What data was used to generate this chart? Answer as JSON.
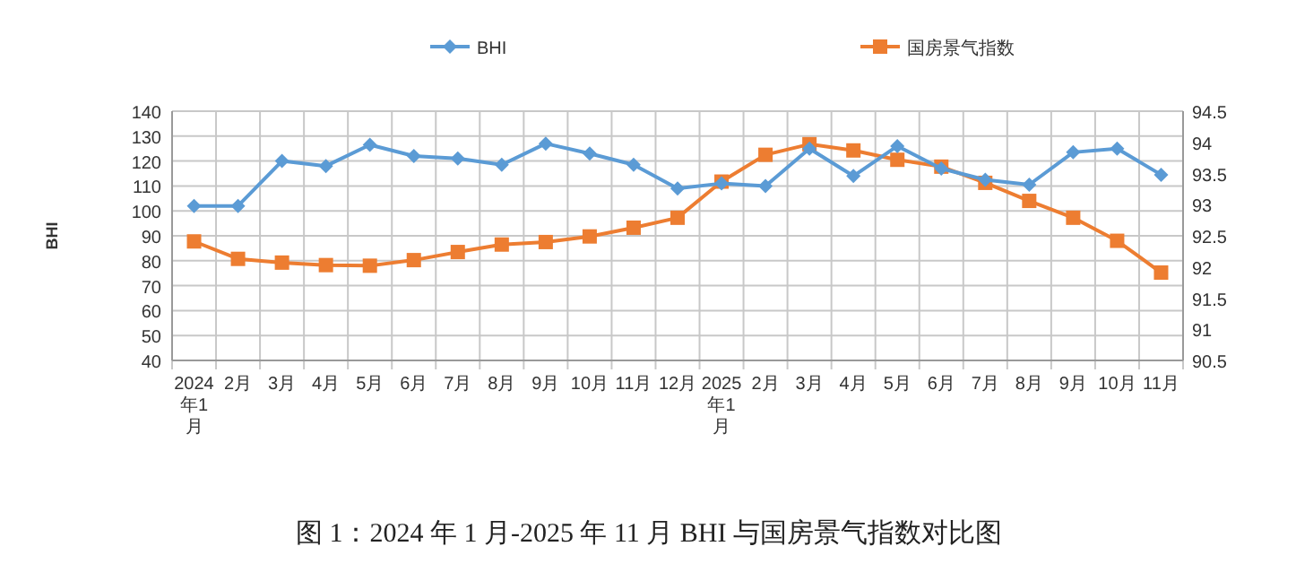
{
  "chart_data": {
    "type": "line",
    "title": "图 1：2024 年 1 月-2025 年 11 月 BHI 与国房景气指数对比图",
    "ylabel": "BHI",
    "categories": [
      "2024年1月",
      "2月",
      "3月",
      "4月",
      "5月",
      "6月",
      "7月",
      "8月",
      "9月",
      "10月",
      "11月",
      "12月",
      "2025年1月",
      "2月",
      "3月",
      "4月",
      "5月",
      "6月",
      "7月",
      "8月",
      "9月",
      "10月",
      "11月"
    ],
    "series": [
      {
        "name": "BHI",
        "color": "#5b9bd5",
        "marker": "diamond",
        "values": [
          102,
          102,
          120,
          118,
          126.5,
          122,
          121,
          118.5,
          127,
          123,
          118.5,
          109,
          111,
          110,
          125,
          114,
          126,
          117,
          112.5,
          110.5,
          123.5,
          125,
          114.5
        ]
      },
      {
        "name": "国房景气指数",
        "color": "#ed7d31",
        "marker": "square",
        "axis": "y2",
        "values": [
          92.41,
          92.13,
          92.07,
          92.03,
          92.02,
          92.11,
          92.24,
          92.36,
          92.4,
          92.49,
          92.63,
          92.79,
          93.37,
          93.8,
          93.97,
          93.87,
          93.72,
          93.61,
          93.35,
          93.06,
          92.79,
          92.42,
          91.91
        ]
      }
    ],
    "ylim": [
      40,
      140
    ],
    "yticks": [
      40,
      50,
      60,
      70,
      80,
      90,
      100,
      110,
      120,
      130,
      140
    ],
    "y2lim": [
      90.5,
      94.5
    ],
    "y2ticks": [
      90.5,
      91,
      91.5,
      92,
      92.5,
      93,
      93.5,
      94,
      94.5
    ],
    "grid": true,
    "legend": "top",
    "line_style": "solid"
  }
}
